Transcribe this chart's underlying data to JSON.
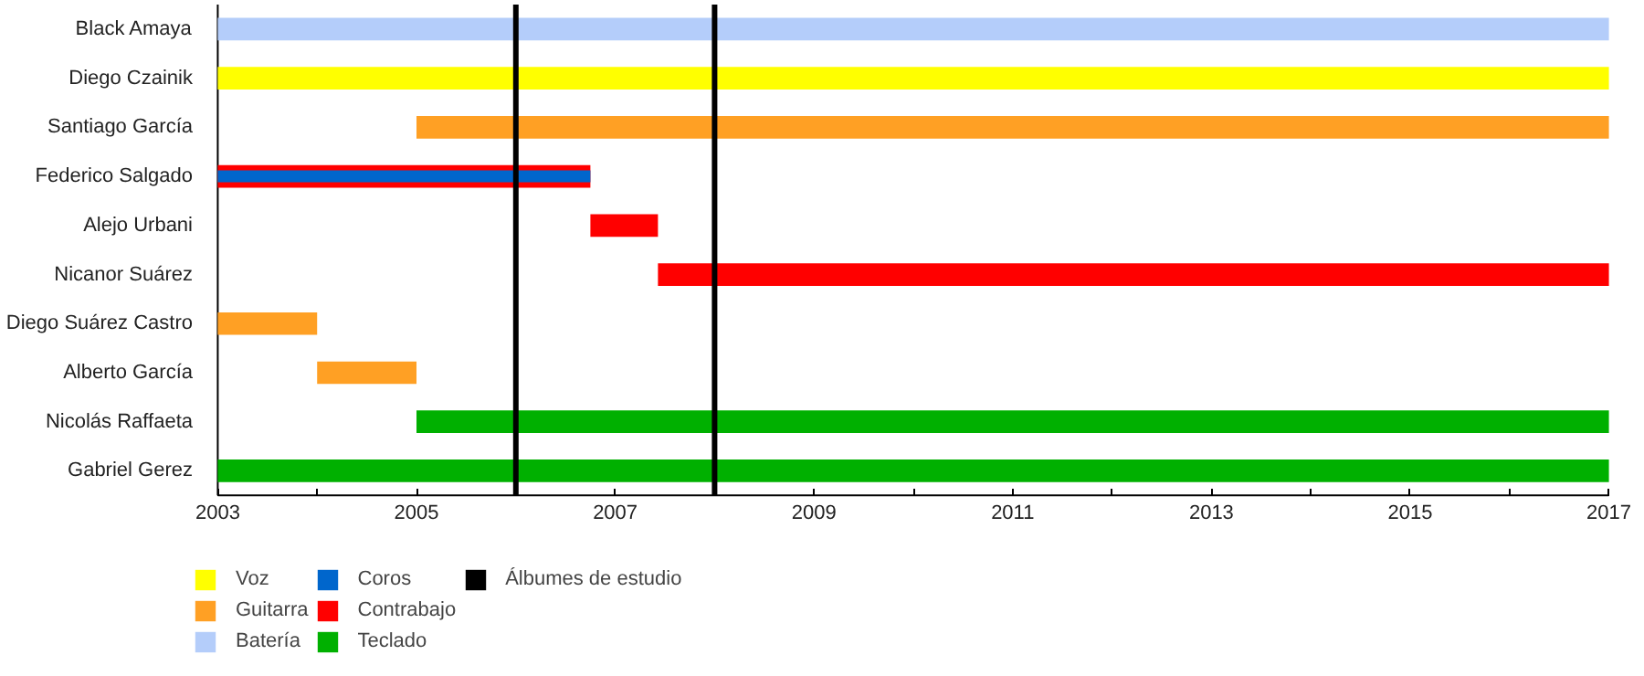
{
  "chart_data": {
    "type": "bar",
    "orientation": "horizontal",
    "categories": [
      "Black Amaya",
      "Diego Czainik",
      "Santiago García",
      "Federico Salgado",
      "Alejo Urbani",
      "Nicanor Suárez",
      "Diego Suárez Castro",
      "Alberto García",
      "Nicolás Raffaeta",
      "Gabriel Gerez"
    ],
    "series": [
      {
        "name": "Voz",
        "color": "#ffff00",
        "values": [
          null,
          14,
          null,
          null,
          null,
          null,
          null,
          null,
          null,
          null
        ],
        "base": [
          null,
          2003,
          null,
          null,
          null,
          null,
          null,
          null,
          null,
          null
        ]
      },
      {
        "name": "Guitarra",
        "color": "#ffa024",
        "values": [
          null,
          null,
          12,
          null,
          null,
          null,
          1,
          1,
          null,
          null
        ],
        "base": [
          null,
          null,
          2005,
          null,
          null,
          null,
          2003,
          2004,
          null,
          null
        ]
      },
      {
        "name": "Batería",
        "color": "#b4cdfa",
        "values": [
          14,
          null,
          null,
          null,
          null,
          null,
          null,
          null,
          null,
          null
        ],
        "base": [
          2003,
          null,
          null,
          null,
          null,
          null,
          null,
          null,
          null,
          null
        ]
      },
      {
        "name": "Coros",
        "color": "#0066cc",
        "values": [
          null,
          null,
          null,
          3.75,
          null,
          null,
          null,
          null,
          null,
          null
        ],
        "base": [
          null,
          null,
          null,
          2003,
          null,
          null,
          null,
          null,
          null,
          null
        ]
      },
      {
        "name": "Contrabajo",
        "color": "#ff0000",
        "values": [
          null,
          null,
          null,
          3.75,
          0.68,
          9.57,
          null,
          null,
          null,
          null
        ],
        "base": [
          null,
          null,
          null,
          2003,
          2006.75,
          2007.43,
          null,
          null,
          null,
          null
        ]
      },
      {
        "name": "Teclado",
        "color": "#00b000",
        "values": [
          null,
          null,
          null,
          null,
          null,
          null,
          null,
          null,
          12,
          14
        ],
        "base": [
          null,
          null,
          null,
          null,
          null,
          null,
          null,
          null,
          2005,
          2003
        ]
      }
    ],
    "ref_lines": [
      {
        "axis": "x",
        "value": 2006,
        "label": "Álbumes de estudio",
        "color": "#000000"
      },
      {
        "axis": "x",
        "value": 2008,
        "color": "#000000"
      }
    ],
    "xlim": [
      2003,
      2017
    ],
    "xticks": [
      2003,
      {
        "value": 2004,
        "label": null
      },
      2005,
      {
        "value": 2006,
        "label": null
      },
      2007,
      {
        "value": 2008,
        "label": null
      },
      2009,
      {
        "value": 2010,
        "label": null
      },
      2011,
      {
        "value": 2012,
        "label": null
      },
      2013,
      {
        "value": 2014,
        "label": null
      },
      2015,
      {
        "value": 2016,
        "label": null
      },
      2017
    ],
    "grid": false,
    "legend": "bottom"
  }
}
